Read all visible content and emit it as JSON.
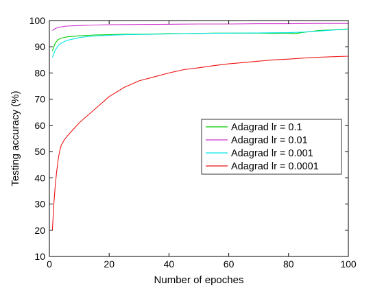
{
  "chart_data": {
    "type": "line",
    "title": "",
    "xlabel": "Number of epoches",
    "ylabel": "Testing accuracy (%)",
    "xlim": [
      0,
      100
    ],
    "ylim": [
      10,
      100
    ],
    "xticks": [
      "0",
      "20",
      "40",
      "60",
      "80",
      "100"
    ],
    "yticks": [
      "10",
      "20",
      "30",
      "40",
      "50",
      "60",
      "70",
      "80",
      "90",
      "100"
    ],
    "grid": false,
    "legend_position": "center-right",
    "series": [
      {
        "name": "Adagrad lr = 0.1",
        "color": "#00cc00",
        "x": [
          1,
          2,
          3,
          4,
          5,
          6,
          8,
          10,
          12,
          15,
          20,
          25,
          30,
          35,
          40,
          45,
          50,
          55,
          60,
          65,
          70,
          75,
          80,
          82,
          85,
          88,
          90,
          95,
          100
        ],
        "y": [
          88.5,
          91.5,
          92.8,
          93.3,
          93.6,
          93.8,
          94.0,
          94.2,
          94.3,
          94.5,
          94.6,
          94.8,
          94.8,
          94.9,
          95.0,
          95.0,
          95.1,
          95.2,
          95.2,
          95.2,
          95.2,
          95.1,
          95.2,
          95.0,
          95.5,
          95.9,
          96.2,
          96.5,
          96.8
        ]
      },
      {
        "name": "Adagrad lr = 0.01",
        "color": "#cc33cc",
        "x": [
          1,
          2,
          3,
          4,
          5,
          6,
          8,
          10,
          15,
          20,
          30,
          40,
          50,
          60,
          70,
          80,
          90,
          100
        ],
        "y": [
          96.2,
          97.0,
          97.4,
          97.6,
          97.8,
          97.9,
          98.0,
          98.1,
          98.3,
          98.4,
          98.5,
          98.6,
          98.7,
          98.7,
          98.8,
          98.8,
          98.9,
          98.9
        ]
      },
      {
        "name": "Adagrad lr = 0.001",
        "color": "#00e5e5",
        "x": [
          1,
          2,
          3,
          4,
          5,
          6,
          8,
          10,
          12,
          15,
          20,
          25,
          30,
          40,
          50,
          60,
          70,
          80,
          85,
          90,
          95,
          100
        ],
        "y": [
          86.0,
          88.8,
          90.5,
          91.4,
          92.0,
          92.5,
          93.0,
          93.5,
          93.8,
          94.1,
          94.4,
          94.6,
          94.7,
          94.9,
          95.1,
          95.2,
          95.3,
          95.4,
          95.6,
          96.0,
          96.4,
          96.7
        ]
      },
      {
        "name": "Adagrad lr = 0.0001",
        "color": "#ee1111",
        "x": [
          1,
          1.5,
          2,
          2.5,
          3,
          3.5,
          4,
          5,
          6,
          8,
          10,
          12,
          15,
          18,
          20,
          25,
          30,
          35,
          40,
          45,
          50,
          55,
          60,
          65,
          70,
          75,
          80,
          85,
          90,
          95,
          100
        ],
        "y": [
          20.0,
          30.0,
          37.5,
          43.0,
          47.5,
          50.5,
          52.5,
          54.5,
          56.0,
          58.5,
          61.0,
          63.0,
          66.0,
          69.0,
          71.0,
          74.5,
          77.0,
          78.5,
          80.0,
          81.3,
          82.0,
          82.8,
          83.5,
          84.0,
          84.5,
          85.0,
          85.3,
          85.7,
          86.0,
          86.2,
          86.4
        ]
      }
    ]
  }
}
